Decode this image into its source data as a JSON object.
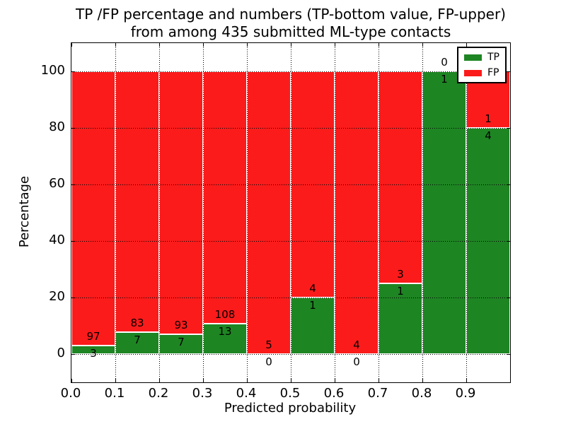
{
  "title": {
    "line1": "TP /FP percentage and numbers (TP-bottom value, FP-upper)",
    "line2": "from among 435 submitted ML-type contacts"
  },
  "axes": {
    "x_label": "Predicted probability",
    "y_label": "Percentage",
    "x_tick_labels": [
      "0.0",
      "0.1",
      "0.2",
      "0.3",
      "0.4",
      "0.5",
      "0.6",
      "0.7",
      "0.8",
      "0.9"
    ],
    "x_tick_values": [
      0,
      0.1,
      0.2,
      0.3,
      0.4,
      0.5,
      0.6,
      0.7,
      0.8,
      0.9
    ],
    "y_tick_labels": [
      "0",
      "20",
      "40",
      "60",
      "80",
      "100"
    ],
    "y_tick_values": [
      0,
      20,
      40,
      60,
      80,
      100
    ],
    "x_lim": [
      0,
      1
    ],
    "y_lim": [
      -10,
      110
    ],
    "grid": "dotted"
  },
  "legend": {
    "position": "upper right",
    "items": [
      {
        "label": "TP",
        "color": "#1e8523"
      },
      {
        "label": "FP",
        "color": "#fb1b1b"
      }
    ]
  },
  "chart_data": {
    "type": "bar",
    "stacked": true,
    "normalized_to_percent": true,
    "title": "TP /FP percentage and numbers (TP-bottom value, FP-upper) from among 435 submitted ML-type contacts",
    "xlabel": "Predicted probability",
    "ylabel": "Percentage",
    "total_contacts": 435,
    "bin_width": 0.1,
    "x_bins": [
      0.0,
      0.1,
      0.2,
      0.3,
      0.4,
      0.5,
      0.6,
      0.7,
      0.8,
      0.9
    ],
    "series": [
      {
        "name": "TP",
        "color": "#1e8523",
        "values": [
          3,
          7,
          7,
          13,
          0,
          1,
          0,
          1,
          1,
          4
        ]
      },
      {
        "name": "FP",
        "color": "#fb1b1b",
        "values": [
          97,
          83,
          93,
          108,
          5,
          4,
          4,
          3,
          0,
          1
        ]
      }
    ],
    "tp_percent_by_bin": [
      3.0,
      7.78,
      7.0,
      10.74,
      0.0,
      20.0,
      0.0,
      25.0,
      100.0,
      80.0
    ],
    "annotation_rule": "FP count printed just above TP-segment top, TP count just below it"
  }
}
